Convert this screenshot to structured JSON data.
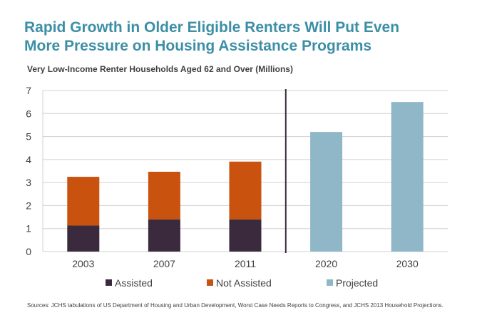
{
  "title_lines": [
    "Rapid Growth in Older Eligible Renters Will Put Even",
    "More Pressure on Housing Assistance Programs"
  ],
  "subtitle": "Very Low-Income Renter Households Aged 62 and Over (Millions)",
  "source": "Sources: JCHS tabulations of US Department of Housing and Urban Development, Worst Case Needs Reports to Congress, and JCHS 2013 Household Projections.",
  "colors": {
    "assisted": "#3b2a3e",
    "not_assisted": "#c8520e",
    "projected": "#8fb7c8",
    "grid": "#d0d0d0",
    "divider": "#3b2a3e"
  },
  "chart_data": {
    "type": "bar",
    "stacked": true,
    "categories": [
      "2003",
      "2007",
      "2011",
      "2020",
      "2030"
    ],
    "series": [
      {
        "name": "Assisted",
        "values": [
          1.13,
          1.4,
          1.4,
          null,
          null
        ]
      },
      {
        "name": "Not Assisted",
        "values": [
          2.12,
          2.07,
          2.51,
          null,
          null
        ]
      },
      {
        "name": "Projected",
        "values": [
          null,
          null,
          null,
          5.2,
          6.5
        ]
      }
    ],
    "ylim": [
      0,
      7
    ],
    "yticks": [
      "0",
      "1",
      "2",
      "3",
      "4",
      "5",
      "6",
      "7"
    ],
    "grid": true,
    "legend_position": "bottom",
    "divider_after_category": "2011",
    "xlabel": "",
    "ylabel": ""
  }
}
